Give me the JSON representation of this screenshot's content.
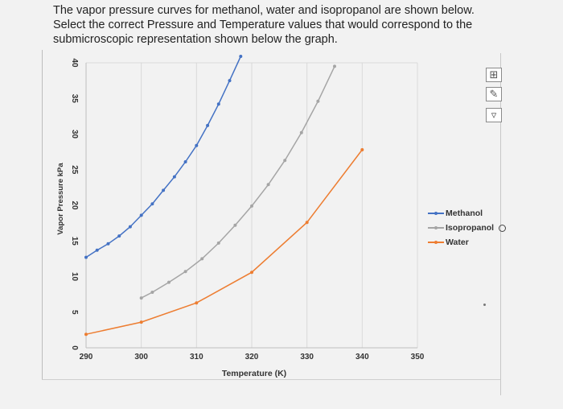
{
  "question": {
    "line1": "The vapor pressure curves for methanol, water and isopropanol are shown below.",
    "line2": "Select the correct Pressure and Temperature values that would correspond to the",
    "line3": "submicroscopic representation shown below the graph."
  },
  "toolbar": {
    "add_icon": "plus-grid-icon",
    "brush_icon": "brush-icon",
    "filter_icon": "filter-icon"
  },
  "chart_data": {
    "type": "line",
    "xlabel": "Temperature (K)",
    "ylabel": "Vapor Pressure kPa",
    "xlim": [
      290,
      350
    ],
    "ylim": [
      0,
      40
    ],
    "x_ticks": [
      "290",
      "300",
      "310",
      "320",
      "330",
      "340",
      "350"
    ],
    "y_ticks": [
      "0",
      "5",
      "10",
      "15",
      "20",
      "25",
      "30",
      "35",
      "40"
    ],
    "grid": true,
    "legend": "right",
    "series": [
      {
        "name": "Methanol",
        "color": "#4472c4",
        "x": [
          290,
          292,
          294,
          296,
          298,
          300,
          302,
          304,
          306,
          308,
          310,
          312,
          314,
          316,
          318
        ],
        "y": [
          12.7,
          13.7,
          14.6,
          15.7,
          17.0,
          18.6,
          20.2,
          22.1,
          24.0,
          26.1,
          28.4,
          31.2,
          34.2,
          37.5,
          40.9
        ]
      },
      {
        "name": "Isopropanol",
        "color": "#a5a5a5",
        "x": [
          300,
          302,
          305,
          308,
          311,
          314,
          317,
          320,
          323,
          326,
          329,
          332,
          335
        ],
        "y": [
          7.0,
          7.8,
          9.2,
          10.7,
          12.5,
          14.7,
          17.2,
          19.9,
          22.9,
          26.3,
          30.2,
          34.6,
          39.5
        ]
      },
      {
        "name": "Water",
        "color": "#ed7d31",
        "x": [
          290,
          300,
          310,
          320,
          330,
          340
        ],
        "y": [
          1.9,
          3.6,
          6.3,
          10.6,
          17.6,
          27.8
        ]
      }
    ]
  },
  "legend": {
    "methanol": "Methanol",
    "isopropanol": "Isopropanol",
    "water": "Water"
  }
}
